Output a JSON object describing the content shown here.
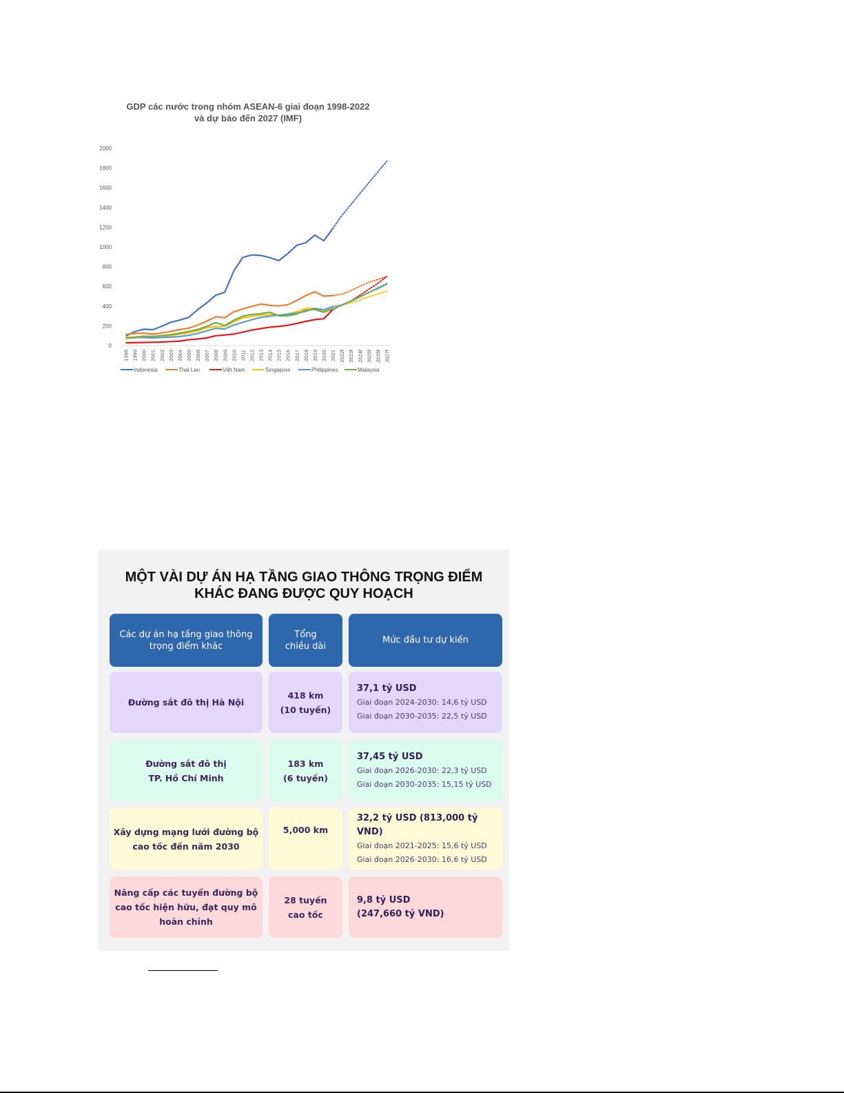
{
  "chart_data": {
    "type": "line",
    "title": "GDP các nước trong nhóm ASEAN-6 giai đoạn 1998-2022",
    "subtitle": "và dự báo đến 2027 (IMF)",
    "categories": [
      "1998",
      "1999",
      "2000",
      "2001",
      "2002",
      "2003",
      "2004",
      "2005",
      "2006",
      "2007",
      "2008",
      "2009",
      "2010",
      "2011",
      "2012",
      "2013",
      "2014",
      "2015",
      "2016",
      "2017",
      "2018",
      "2019",
      "2020",
      "2021",
      "2022f",
      "2023f",
      "2024f",
      "2025f",
      "2026f",
      "2027f"
    ],
    "y_ticks": [
      "0",
      "200",
      "400",
      "600",
      "800",
      "1000",
      "1200",
      "1400",
      "1600",
      "1800",
      "2000"
    ],
    "ylim": [
      0,
      2000
    ],
    "grid": false,
    "legend_position": "bottom",
    "forecast_start": "2021",
    "series": [
      {
        "name": "Indonesia",
        "color": "#4472c4",
        "values": [
          95,
          140,
          165,
          160,
          195,
          235,
          257,
          285,
          365,
          432,
          510,
          540,
          755,
          893,
          918,
          913,
          890,
          861,
          932,
          1016,
          1042,
          1119,
          1062,
          1187,
          1318,
          1428,
          1540,
          1651,
          1760,
          1870
        ]
      },
      {
        "name": "Thái Lan",
        "color": "#ed7d31",
        "values": [
          113,
          122,
          126,
          115,
          127,
          142,
          161,
          176,
          206,
          247,
          291,
          281,
          341,
          370,
          397,
          420,
          407,
          401,
          413,
          456,
          506,
          544,
          500,
          506,
          520,
          555,
          600,
          640,
          670,
          700
        ]
      },
      {
        "name": "Việt Nam",
        "color": "#e31a1c",
        "values": [
          27,
          29,
          31,
          33,
          35,
          40,
          45,
          58,
          66,
          77,
          99,
          106,
          116,
          135,
          156,
          171,
          186,
          193,
          205,
          224,
          245,
          262,
          271,
          366,
          410,
          450,
          510,
          570,
          630,
          700
        ]
      },
      {
        "name": "Singapore",
        "color": "#ffc000",
        "values": [
          85,
          86,
          96,
          90,
          92,
          98,
          115,
          128,
          148,
          181,
          193,
          194,
          240,
          280,
          295,
          307,
          314,
          308,
          319,
          343,
          376,
          375,
          345,
          397,
          410,
          432,
          462,
          494,
          524,
          550
        ]
      },
      {
        "name": "Philippines",
        "color": "#5b9bd5",
        "values": [
          72,
          83,
          81,
          76,
          81,
          84,
          91,
          103,
          122,
          149,
          174,
          168,
          208,
          234,
          262,
          284,
          297,
          306,
          318,
          328,
          346,
          376,
          362,
          394,
          411,
          450,
          495,
          540,
          585,
          630
        ]
      },
      {
        "name": "Malaysia",
        "color": "#70ad47",
        "values": [
          72,
          79,
          94,
          92,
          101,
          110,
          125,
          143,
          163,
          194,
          231,
          202,
          255,
          298,
          314,
          323,
          338,
          301,
          301,
          319,
          358,
          365,
          337,
          373,
          410,
          448,
          490,
          535,
          575,
          620
        ]
      }
    ]
  },
  "infographic": {
    "title_line1": "MỘT VÀI DỰ ÁN HẠ TẦNG GIAO THÔNG TRỌNG ĐIỂM",
    "title_line2": "KHÁC ĐANG ĐƯỢC QUY HOẠCH",
    "headers": {
      "project": [
        "Các dự án hạ tầng giao thông",
        "trọng điểm khác"
      ],
      "length": [
        "Tổng",
        "chiều dài"
      ],
      "investment": "Mức đầu tư dự kiến"
    },
    "rows": [
      {
        "bg": "#e3d7fb",
        "project": [
          "Đường sắt đô thị Hà Nội"
        ],
        "length": [
          "418 km",
          "(10 tuyến)"
        ],
        "invest_main": [
          "37,1 tỷ USD"
        ],
        "invest_sub": [
          "Giai đoạn 2024-2030: 14,6 tỷ USD",
          "Giai đoạn 2030-2035: 22,5 tỷ USD"
        ]
      },
      {
        "bg": "#dbfbef",
        "project": [
          "Đường sắt đô thị",
          "TP. Hồ Chí Minh"
        ],
        "length": [
          "183 km",
          "(6 tuyến)"
        ],
        "invest_main": [
          "37,45 tỷ USD"
        ],
        "invest_sub": [
          "Giai đoạn 2026-2030: 22,3 tỷ USD",
          "Giai đoạn 2030-2035: 15,15 tỷ USD"
        ]
      },
      {
        "bg": "#fdfad6",
        "project": [
          "Xây dựng mạng lưới đường bộ",
          "cao tốc đến năm 2030"
        ],
        "length": [
          "5,000 km"
        ],
        "invest_main": [
          "32,2 tỷ USD (813,000 tỷ VND)"
        ],
        "invest_sub": [
          "Giai đoạn 2021-2025: 15,6 tỷ USD",
          "Giai đoạn 2026-2030: 16,6 tỷ USD"
        ]
      },
      {
        "bg": "#fdd9dc",
        "project": [
          "Nâng cấp các tuyến đường bộ",
          "cao tốc hiện hữu, đạt quy mô",
          "hoàn chỉnh"
        ],
        "length": [
          "28 tuyến",
          "cao tốc"
        ],
        "invest_main": [
          "9,8 tỷ USD",
          "(247,660 tỷ VND)"
        ],
        "invest_sub": []
      }
    ]
  }
}
